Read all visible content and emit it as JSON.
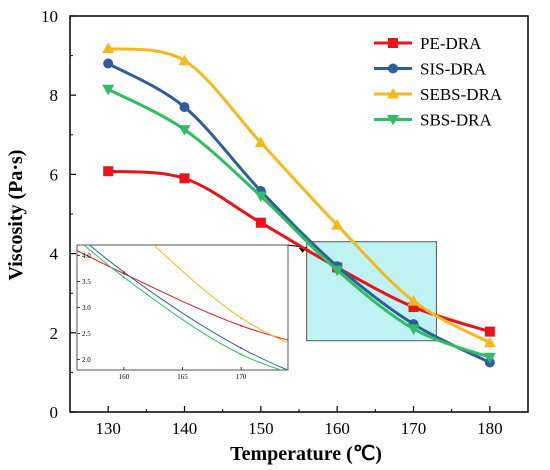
{
  "chart_data": {
    "type": "line",
    "xlabel": "Temperature (℃)",
    "ylabel": "Viscosity (Pa·s)",
    "xlim": [
      125,
      185
    ],
    "ylim": [
      0,
      10
    ],
    "xticks": [
      130,
      140,
      150,
      160,
      170,
      180
    ],
    "yticks": [
      0,
      2,
      4,
      6,
      8,
      10
    ],
    "x": [
      130,
      140,
      150,
      160,
      170,
      180
    ],
    "legend_position": "top-right",
    "grid": false,
    "series": [
      {
        "name": "PE-DRA",
        "color": "#e8141a",
        "marker": "square",
        "values": [
          6.08,
          5.9,
          4.78,
          3.65,
          2.65,
          2.03
        ]
      },
      {
        "name": "SIS-DRA",
        "color": "#305e9d",
        "marker": "circle",
        "values": [
          8.8,
          7.7,
          5.58,
          3.68,
          2.22,
          1.25
        ]
      },
      {
        "name": "SEBS-DRA",
        "color": "#f7b81c",
        "marker": "triangle-up",
        "values": [
          9.18,
          8.87,
          6.8,
          4.72,
          2.8,
          1.75
        ]
      },
      {
        "name": "SBS-DRA",
        "color": "#2fbf62",
        "marker": "triangle-down",
        "values": [
          8.15,
          7.13,
          5.45,
          3.58,
          2.1,
          1.38
        ]
      }
    ],
    "zoom_region": {
      "xlim": [
        156,
        173
      ],
      "ylim": [
        1.8,
        4.3
      ],
      "fill": "#bff2f3"
    },
    "inset": {
      "xlim": [
        156,
        174
      ],
      "ylim": [
        1.8,
        4.2
      ],
      "xticks": [
        160,
        165,
        170
      ],
      "yticks": [
        2.0,
        2.5,
        3.0,
        3.5,
        4.0
      ],
      "ytick_labels": [
        "2.0",
        "2.5",
        "3.0",
        "3.5",
        "4.0"
      ]
    }
  }
}
